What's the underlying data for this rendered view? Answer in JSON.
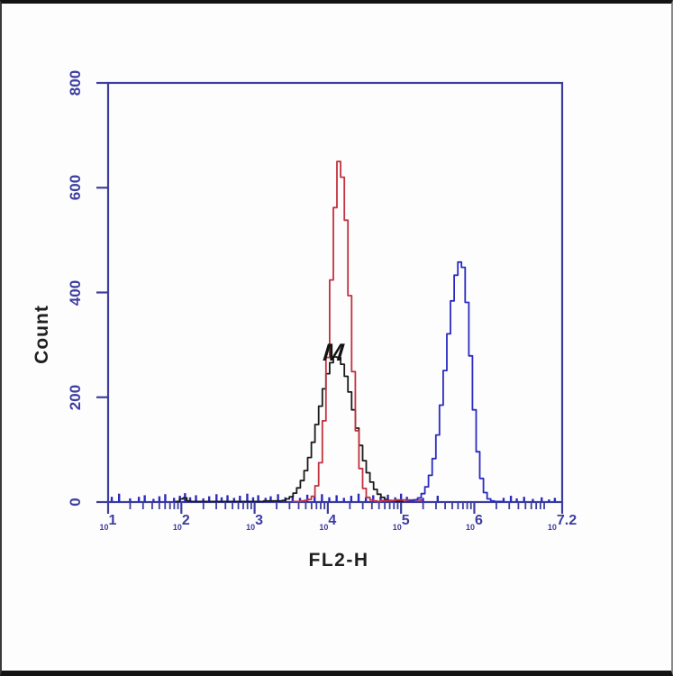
{
  "chart_data": {
    "type": "line",
    "subtype": "flow-cytometry-histogram-overlay",
    "title": "",
    "xlabel": "FL2-H",
    "ylabel": "Count",
    "x_scale": "log10",
    "xlim_log": [
      1,
      7.2
    ],
    "ylim": [
      0,
      800
    ],
    "y_ticks": [
      0,
      200,
      400,
      600,
      800
    ],
    "x_major_tick_exponents": [
      "1",
      "2",
      "3",
      "4",
      "5",
      "6",
      "7.2"
    ],
    "x_major_tick_logs": [
      1,
      2,
      3,
      4,
      5,
      6,
      7.2
    ],
    "grid": false,
    "legend": "none",
    "marker": {
      "label": "M",
      "log_x": 4.1,
      "count": 300
    },
    "axis_color": "#3d3da0",
    "series": [
      {
        "name": "black-histogram",
        "color": "#1b1b1b",
        "peak_log_x": 4.12,
        "peak_count": 277,
        "points": [
          [
            1.95,
            1
          ],
          [
            2.0,
            6
          ],
          [
            2.05,
            8
          ],
          [
            2.1,
            2
          ],
          [
            2.3,
            1
          ],
          [
            2.6,
            1
          ],
          [
            2.9,
            1
          ],
          [
            3.1,
            1
          ],
          [
            3.3,
            2
          ],
          [
            3.35,
            2
          ],
          [
            3.4,
            3
          ],
          [
            3.45,
            6
          ],
          [
            3.5,
            10
          ],
          [
            3.55,
            17
          ],
          [
            3.6,
            27
          ],
          [
            3.65,
            41
          ],
          [
            3.7,
            60
          ],
          [
            3.75,
            85
          ],
          [
            3.8,
            114
          ],
          [
            3.85,
            148
          ],
          [
            3.9,
            183
          ],
          [
            3.95,
            216
          ],
          [
            4.0,
            245
          ],
          [
            4.05,
            266
          ],
          [
            4.1,
            277
          ],
          [
            4.15,
            276
          ],
          [
            4.2,
            263
          ],
          [
            4.25,
            240
          ],
          [
            4.3,
            210
          ],
          [
            4.35,
            176
          ],
          [
            4.4,
            141
          ],
          [
            4.45,
            108
          ],
          [
            4.5,
            79
          ],
          [
            4.55,
            56
          ],
          [
            4.6,
            38
          ],
          [
            4.65,
            24
          ],
          [
            4.7,
            15
          ],
          [
            4.75,
            9
          ],
          [
            4.8,
            5
          ],
          [
            4.85,
            3
          ],
          [
            4.9,
            2
          ],
          [
            4.95,
            1
          ],
          [
            5.0,
            1
          ]
        ]
      },
      {
        "name": "red-histogram",
        "color": "#c1323f",
        "peak_log_x": 4.15,
        "peak_count": 650,
        "points": [
          [
            3.55,
            1
          ],
          [
            3.6,
            1
          ],
          [
            3.65,
            2
          ],
          [
            3.7,
            3
          ],
          [
            3.75,
            5
          ],
          [
            3.8,
            11
          ],
          [
            3.85,
            31
          ],
          [
            3.9,
            75
          ],
          [
            3.95,
            155
          ],
          [
            4.0,
            276
          ],
          [
            4.05,
            424
          ],
          [
            4.1,
            562
          ],
          [
            4.15,
            650
          ],
          [
            4.2,
            620
          ],
          [
            4.25,
            538
          ],
          [
            4.3,
            394
          ],
          [
            4.35,
            249
          ],
          [
            4.4,
            136
          ],
          [
            4.45,
            64
          ],
          [
            4.5,
            26
          ],
          [
            4.55,
            9
          ],
          [
            4.6,
            4
          ],
          [
            4.65,
            2
          ],
          [
            4.7,
            1
          ],
          [
            4.9,
            3
          ],
          [
            5.25,
            4
          ]
        ]
      },
      {
        "name": "blue-histogram",
        "color": "#2a2ac2",
        "peak_log_x": 5.8,
        "peak_count": 458,
        "points": [
          [
            5.1,
            1
          ],
          [
            5.15,
            2
          ],
          [
            5.2,
            4
          ],
          [
            5.25,
            8
          ],
          [
            5.3,
            16
          ],
          [
            5.35,
            29
          ],
          [
            5.4,
            51
          ],
          [
            5.45,
            83
          ],
          [
            5.5,
            128
          ],
          [
            5.55,
            185
          ],
          [
            5.6,
            251
          ],
          [
            5.65,
            321
          ],
          [
            5.7,
            384
          ],
          [
            5.75,
            433
          ],
          [
            5.8,
            458
          ],
          [
            5.85,
            448
          ],
          [
            5.9,
            381
          ],
          [
            5.95,
            279
          ],
          [
            6.0,
            176
          ],
          [
            6.05,
            96
          ],
          [
            6.1,
            45
          ],
          [
            6.15,
            18
          ],
          [
            6.2,
            6
          ],
          [
            6.25,
            2
          ],
          [
            6.3,
            1
          ],
          [
            6.35,
            1
          ]
        ]
      }
    ],
    "rug": {
      "color": "#2a2ac2",
      "spikes": [
        [
          1.05,
          10
        ],
        [
          1.15,
          16
        ],
        [
          1.3,
          7
        ],
        [
          1.42,
          10
        ],
        [
          1.5,
          13
        ],
        [
          1.62,
          6
        ],
        [
          1.7,
          11
        ],
        [
          1.78,
          15
        ],
        [
          1.9,
          8
        ],
        [
          1.98,
          12
        ],
        [
          2.05,
          17
        ],
        [
          2.12,
          9
        ],
        [
          2.2,
          13
        ],
        [
          2.3,
          7
        ],
        [
          2.38,
          11
        ],
        [
          2.48,
          15
        ],
        [
          2.55,
          9
        ],
        [
          2.63,
          13
        ],
        [
          2.72,
          8
        ],
        [
          2.8,
          12
        ],
        [
          2.9,
          16
        ],
        [
          2.98,
          9
        ],
        [
          3.05,
          13
        ],
        [
          3.15,
          8
        ],
        [
          3.22,
          11
        ],
        [
          3.32,
          15
        ],
        [
          3.42,
          9
        ],
        [
          3.52,
          12
        ],
        [
          3.62,
          8
        ],
        [
          3.72,
          14
        ],
        [
          3.82,
          10
        ],
        [
          3.92,
          15
        ],
        [
          4.02,
          9
        ],
        [
          4.12,
          13
        ],
        [
          4.22,
          8
        ],
        [
          4.32,
          12
        ],
        [
          4.42,
          16
        ],
        [
          4.52,
          9
        ],
        [
          4.62,
          13
        ],
        [
          4.72,
          10
        ],
        [
          4.82,
          14
        ],
        [
          4.92,
          9
        ],
        [
          5.0,
          16
        ],
        [
          5.08,
          10
        ],
        [
          5.3,
          8
        ],
        [
          5.5,
          12
        ],
        [
          6.4,
          8
        ],
        [
          6.5,
          12
        ],
        [
          6.58,
          7
        ],
        [
          6.68,
          10
        ],
        [
          6.8,
          6
        ],
        [
          6.92,
          9
        ],
        [
          7.02,
          5
        ],
        [
          7.1,
          8
        ]
      ]
    }
  },
  "labels": {
    "xlabel": "FL2-H",
    "ylabel": "Count",
    "marker": "M"
  }
}
